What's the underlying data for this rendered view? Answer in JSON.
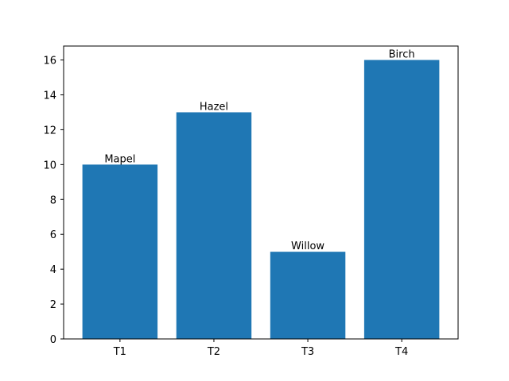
{
  "chart_data": {
    "type": "bar",
    "categories": [
      "T1",
      "T2",
      "T3",
      "T4"
    ],
    "values": [
      10,
      13,
      5,
      16
    ],
    "data_labels": [
      "Mapel",
      "Hazel",
      "Willow",
      "Birch"
    ],
    "yticks": [
      0,
      2,
      4,
      6,
      8,
      10,
      12,
      14,
      16
    ],
    "ylim": [
      0,
      16.8
    ],
    "bar_color": "#1f77b4",
    "grid": false,
    "legend": "none",
    "title": "",
    "xlabel": "",
    "ylabel": ""
  }
}
